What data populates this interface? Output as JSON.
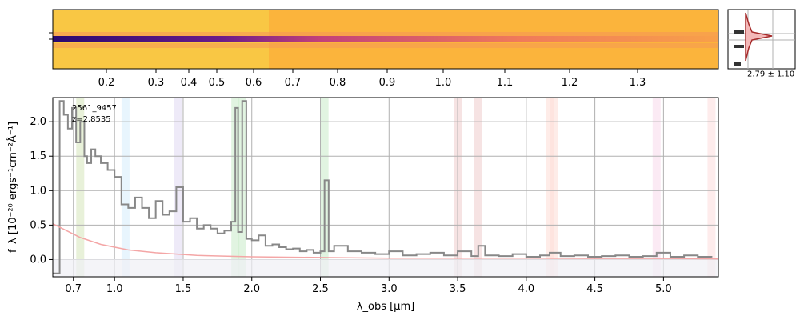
{
  "colors": {
    "spectrum": "#888888",
    "error": "#f4a6a6",
    "grid": "#b0b0b0",
    "image_bg": "#fbb43c",
    "trace": "#3d0a73",
    "hist": "#f4b8b8",
    "hist_line": "#a52a2a"
  },
  "top_axis": {
    "ticks": [
      "0.2",
      "0.3",
      "0.4",
      "0.5",
      "0.6",
      "0.7",
      "0.8",
      "0.9",
      "1.0",
      "1.1",
      "1.2",
      "1.3"
    ]
  },
  "side_panel": {
    "label": "2.79 ± 1.10"
  },
  "chart_data": {
    "type": "line",
    "title": "",
    "object_id": "2561_9457",
    "redshift_label": "z=2.8535",
    "xlabel": "λ_obs [μm]",
    "ylabel": "f_λ [10⁻²⁰ ergs⁻¹cm⁻²Å⁻¹]",
    "xlim": [
      0.55,
      5.4
    ],
    "ylim": [
      -0.25,
      2.35
    ],
    "x_ticks": [
      "0.7",
      "1.0",
      "1.5",
      "2.0",
      "2.5",
      "3.0",
      "3.5",
      "4.0",
      "4.5",
      "5.0"
    ],
    "y_ticks": [
      "0.0",
      "0.5",
      "1.0",
      "1.5",
      "2.0"
    ],
    "grid": true,
    "emission_lines": [
      0.75,
      1.08,
      1.46,
      1.88,
      1.93,
      2.53,
      3.5,
      3.65,
      4.17,
      4.2,
      4.95,
      5.35
    ],
    "series": [
      {
        "name": "",
        "x": [
          0.55,
          0.6,
          0.63,
          0.66,
          0.69,
          0.72,
          0.75,
          0.78,
          0.8,
          0.83,
          0.86,
          0.9,
          0.95,
          1.0,
          1.05,
          1.1,
          1.15,
          1.2,
          1.25,
          1.3,
          1.35,
          1.4,
          1.45,
          1.5,
          1.55,
          1.6,
          1.65,
          1.7,
          1.75,
          1.8,
          1.85,
          1.88,
          1.9,
          1.93,
          1.96,
          2.0,
          2.05,
          2.1,
          2.15,
          2.2,
          2.25,
          2.3,
          2.35,
          2.4,
          2.45,
          2.5,
          2.53,
          2.56,
          2.6,
          2.7,
          2.8,
          2.9,
          3.0,
          3.1,
          3.2,
          3.3,
          3.4,
          3.5,
          3.6,
          3.65,
          3.7,
          3.8,
          3.9,
          4.0,
          4.1,
          4.17,
          4.25,
          4.35,
          4.45,
          4.55,
          4.65,
          4.75,
          4.85,
          4.95,
          5.05,
          5.15,
          5.25,
          5.35
        ],
        "values": [
          -0.2,
          2.3,
          2.1,
          1.9,
          2.2,
          1.7,
          2.0,
          1.5,
          1.4,
          1.6,
          1.5,
          1.4,
          1.3,
          1.2,
          0.8,
          0.75,
          0.9,
          0.75,
          0.6,
          0.85,
          0.65,
          0.7,
          1.05,
          0.55,
          0.6,
          0.45,
          0.5,
          0.45,
          0.38,
          0.42,
          0.55,
          2.2,
          0.4,
          2.3,
          0.3,
          0.28,
          0.35,
          0.2,
          0.22,
          0.18,
          0.15,
          0.16,
          0.12,
          0.14,
          0.1,
          0.12,
          1.15,
          0.12,
          0.2,
          0.12,
          0.1,
          0.08,
          0.12,
          0.06,
          0.08,
          0.1,
          0.06,
          0.12,
          0.05,
          0.2,
          0.06,
          0.05,
          0.08,
          0.04,
          0.06,
          0.1,
          0.05,
          0.06,
          0.04,
          0.05,
          0.06,
          0.04,
          0.05,
          0.1,
          0.04,
          0.06,
          0.04,
          0.03
        ]
      },
      {
        "name": "",
        "x": [
          0.55,
          0.65,
          0.75,
          0.9,
          1.1,
          1.3,
          1.6,
          2.0,
          2.5,
          3.0,
          3.5,
          4.0,
          4.5,
          5.0,
          5.4
        ],
        "values": [
          0.52,
          0.42,
          0.32,
          0.22,
          0.14,
          0.1,
          0.06,
          0.04,
          0.03,
          0.02,
          0.02,
          0.02,
          0.015,
          0.015,
          0.01
        ]
      }
    ]
  }
}
